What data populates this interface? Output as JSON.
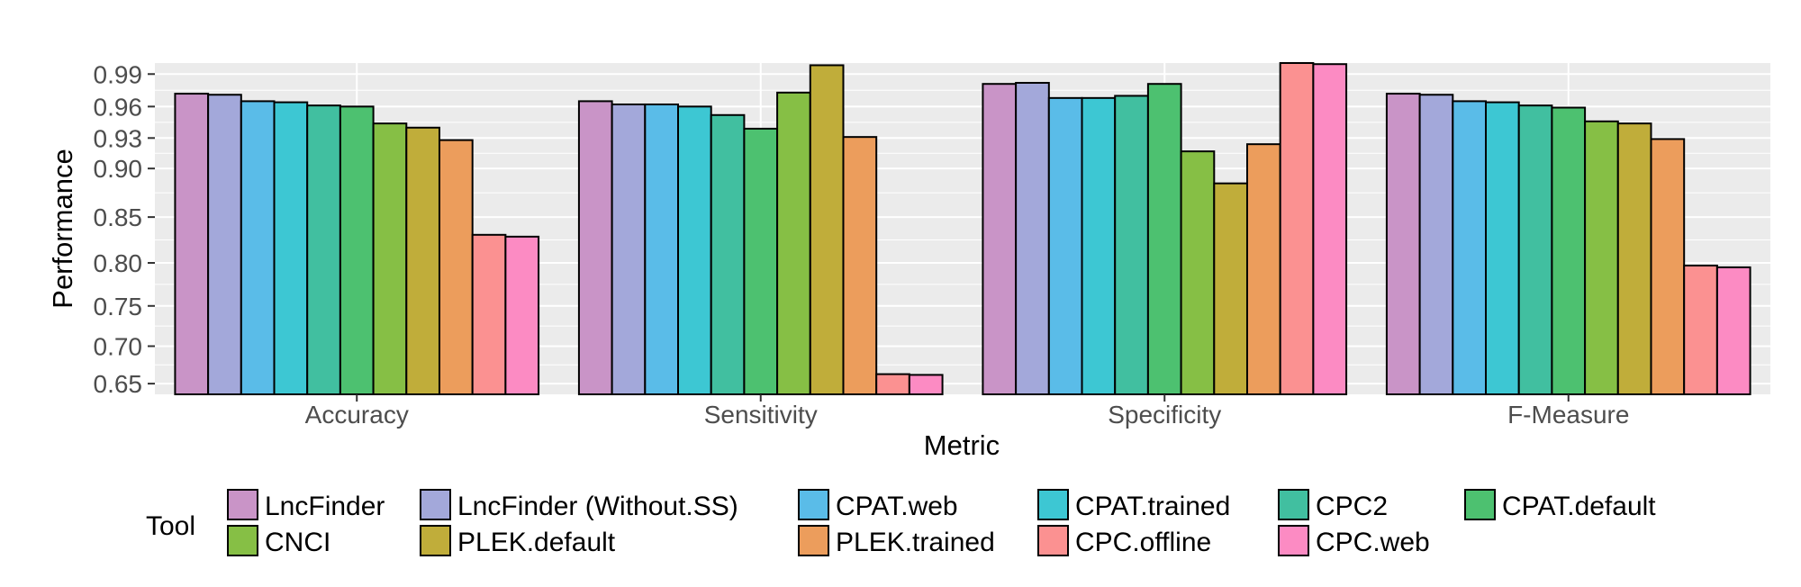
{
  "chart_data": {
    "type": "bar",
    "xlabel": "Metric",
    "ylabel": "Performance",
    "ylim": [
      0.635,
      1.0
    ],
    "y_scale": "squared",
    "yticks": [
      "0.65",
      "0.70",
      "0.75",
      "0.80",
      "0.85",
      "0.90",
      "0.93",
      "0.96",
      "0.99"
    ],
    "grid": true,
    "categories": [
      "Accuracy",
      "Sensitivity",
      "Specificity",
      "F-Measure"
    ],
    "legend": {
      "title": "Tool",
      "position": "bottom"
    },
    "series": [
      {
        "name": "LncFinder",
        "color": "#C994C7",
        "values": [
          0.972,
          0.965,
          0.981,
          0.972
        ]
      },
      {
        "name": "LncFinder (Without.SS)",
        "color": "#A3A8DA",
        "values": [
          0.971,
          0.962,
          0.982,
          0.971
        ]
      },
      {
        "name": "CPAT.web",
        "color": "#5ABCE8",
        "values": [
          0.965,
          0.962,
          0.968,
          0.965
        ]
      },
      {
        "name": "CPAT.trained",
        "color": "#3DC7D3",
        "values": [
          0.964,
          0.96,
          0.968,
          0.964
        ]
      },
      {
        "name": "CPC2",
        "color": "#41BFA0",
        "values": [
          0.961,
          0.952,
          0.97,
          0.961
        ]
      },
      {
        "name": "CPAT.default",
        "color": "#4DC170",
        "values": [
          0.96,
          0.939,
          0.981,
          0.959
        ]
      },
      {
        "name": "CNCI",
        "color": "#86BF45",
        "values": [
          0.944,
          0.973,
          0.917,
          0.946
        ]
      },
      {
        "name": "PLEK.default",
        "color": "#C0AD3A",
        "values": [
          0.94,
          0.998,
          0.885,
          0.944
        ]
      },
      {
        "name": "PLEK.trained",
        "color": "#EC9D5C",
        "values": [
          0.928,
          0.931,
          0.924,
          0.929
        ]
      },
      {
        "name": "CPC.offline",
        "color": "#FB9191",
        "values": [
          0.831,
          0.663,
          1.0,
          0.797
        ]
      },
      {
        "name": "CPC.web",
        "color": "#FC8BC3",
        "values": [
          0.829,
          0.662,
          0.999,
          0.795
        ]
      }
    ]
  }
}
